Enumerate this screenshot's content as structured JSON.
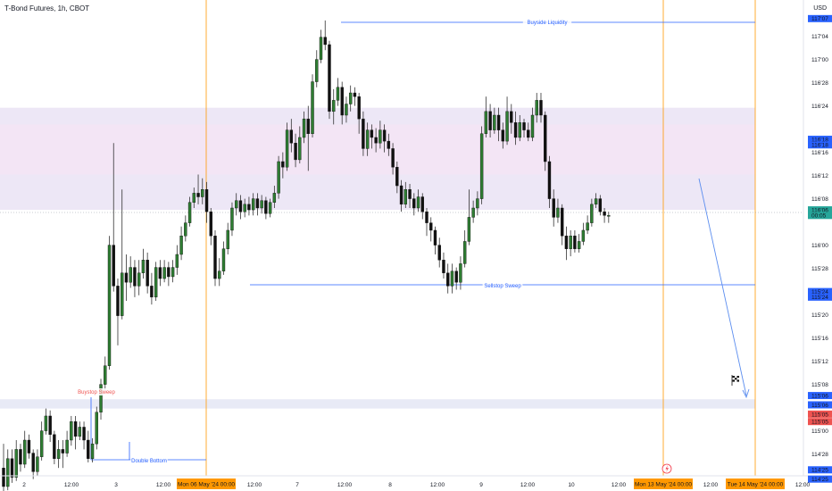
{
  "header": {
    "title": "T-Bond Futures, 1h, CBOT",
    "currency": "USD"
  },
  "chart_data": {
    "type": "candlestick",
    "ylim": [
      114.6,
      117.35
    ],
    "y_ticks": [
      {
        "label": "117'04",
        "value": 117.125
      },
      {
        "label": "117'00",
        "value": 117.0
      },
      {
        "label": "116'28",
        "value": 116.875
      },
      {
        "label": "116'24",
        "value": 116.75
      },
      {
        "label": "116'16",
        "value": 116.5
      },
      {
        "label": "116'12",
        "value": 116.375
      },
      {
        "label": "116'08",
        "value": 116.25
      },
      {
        "label": "116'00",
        "value": 116.0
      },
      {
        "label": "115'28",
        "value": 115.875
      },
      {
        "label": "115'20",
        "value": 115.625
      },
      {
        "label": "115'16",
        "value": 115.5
      },
      {
        "label": "115'12",
        "value": 115.375
      },
      {
        "label": "115'08",
        "value": 115.25
      },
      {
        "label": "115'00",
        "value": 115.0
      },
      {
        "label": "114'28",
        "value": 114.875
      }
    ],
    "x_ticks": [
      "2",
      "12:00",
      "3",
      "12:00",
      "12:00",
      "7",
      "12:00",
      "8",
      "12:00",
      "9",
      "12:00",
      "10",
      "12:00",
      "12:00",
      "12:00"
    ],
    "x_highlight_labels": [
      "Mon 06 May '24  00:00",
      "Mon 13 May '24  00:00",
      "Tue 14 May '24  00:00"
    ],
    "price_tags": [
      {
        "label": "117'07",
        "value": 117.22,
        "color": "#2962ff"
      },
      {
        "label": "116'18",
        "value": 116.57,
        "color": "#2962ff"
      },
      {
        "label": "116'18",
        "value": 116.54,
        "color": "#2962ff"
      },
      {
        "label": "116'06",
        "value": 116.19,
        "color": "#26a69a"
      },
      {
        "label": "00:05",
        "value": 116.16,
        "color": "#26a69a"
      },
      {
        "label": "115'24",
        "value": 115.75,
        "color": "#2962ff"
      },
      {
        "label": "115'24",
        "value": 115.72,
        "color": "#2962ff"
      },
      {
        "label": "115'06",
        "value": 115.19,
        "color": "#2962ff"
      },
      {
        "label": "115'06",
        "value": 115.14,
        "color": "#2962ff"
      },
      {
        "label": "115'05",
        "value": 115.09,
        "color": "#ef5350"
      },
      {
        "label": "115'05",
        "value": 115.05,
        "color": "#ef5350"
      },
      {
        "label": "114'25",
        "value": 114.79,
        "color": "#2962ff"
      },
      {
        "label": "114'25",
        "value": 114.74,
        "color": "#2962ff"
      }
    ],
    "zones": [
      {
        "from": 116.19,
        "to": 116.74,
        "color": "#ede7f6"
      },
      {
        "from": 116.38,
        "to": 116.65,
        "color": "#f3e5f5"
      },
      {
        "from": 115.12,
        "to": 115.17,
        "color": "#e8eaf6"
      }
    ],
    "annotations": [
      {
        "label": "Buyside Liquidity",
        "value": 117.23
      },
      {
        "label": "Sellstop Sweep",
        "value": 115.73
      },
      {
        "label": "Buystop Sweep",
        "value": 115.14
      },
      {
        "label": "Double Bottom",
        "value": 114.79
      }
    ],
    "candles": [
      [
        114.8,
        114.7,
        114.93,
        114.66
      ],
      [
        114.7,
        114.85,
        114.9,
        114.68
      ],
      [
        114.85,
        114.75,
        114.9,
        114.72
      ],
      [
        114.75,
        114.9,
        114.95,
        114.73
      ],
      [
        114.9,
        114.82,
        114.93,
        114.78
      ],
      [
        114.82,
        114.95,
        115.0,
        114.8
      ],
      [
        114.95,
        114.88,
        114.98,
        114.85
      ],
      [
        114.88,
        114.78,
        114.9,
        114.74
      ],
      [
        114.78,
        114.86,
        114.9,
        114.76
      ],
      [
        114.86,
        115.0,
        115.05,
        114.84
      ],
      [
        115.0,
        115.08,
        115.12,
        114.98
      ],
      [
        115.08,
        114.98,
        115.11,
        114.94
      ],
      [
        114.98,
        114.85,
        115.0,
        114.82
      ],
      [
        114.85,
        114.9,
        114.95,
        114.8
      ],
      [
        114.9,
        114.88,
        114.95,
        114.8
      ],
      [
        114.88,
        114.95,
        115.0,
        114.86
      ],
      [
        114.95,
        115.05,
        115.08,
        114.92
      ],
      [
        115.05,
        114.97,
        115.08,
        114.9
      ],
      [
        114.97,
        115.02,
        115.05,
        114.95
      ],
      [
        115.02,
        114.95,
        115.05,
        114.9
      ],
      [
        114.95,
        114.85,
        115.0,
        114.83
      ],
      [
        114.85,
        114.93,
        114.96,
        114.83
      ],
      [
        114.93,
        115.1,
        115.13,
        114.9
      ],
      [
        115.1,
        115.25,
        115.28,
        115.06
      ],
      [
        115.25,
        115.35,
        115.4,
        115.22
      ],
      [
        115.35,
        116.0,
        116.05,
        115.33
      ],
      [
        116.0,
        115.78,
        116.55,
        115.75
      ],
      [
        115.78,
        115.62,
        115.82,
        115.46
      ],
      [
        115.62,
        115.85,
        116.3,
        115.6
      ],
      [
        115.85,
        115.8,
        115.95,
        115.7
      ],
      [
        115.8,
        115.88,
        115.94,
        115.77
      ],
      [
        115.88,
        115.78,
        115.92,
        115.72
      ],
      [
        115.78,
        115.85,
        115.92,
        115.73
      ],
      [
        115.85,
        115.92,
        115.98,
        115.82
      ],
      [
        115.92,
        115.78,
        115.96,
        115.74
      ],
      [
        115.78,
        115.72,
        115.85,
        115.68
      ],
      [
        115.72,
        115.88,
        115.91,
        115.7
      ],
      [
        115.88,
        115.82,
        115.92,
        115.78
      ],
      [
        115.82,
        115.88,
        115.92,
        115.8
      ],
      [
        115.88,
        115.83,
        115.91,
        115.78
      ],
      [
        115.83,
        115.88,
        115.92,
        115.8
      ],
      [
        115.88,
        115.95,
        116.0,
        115.84
      ],
      [
        115.95,
        116.05,
        116.1,
        115.92
      ],
      [
        116.05,
        116.12,
        116.16,
        116.02
      ],
      [
        116.12,
        116.23,
        116.26,
        116.1
      ],
      [
        116.23,
        116.28,
        116.31,
        116.2
      ],
      [
        116.28,
        116.26,
        116.38,
        116.22
      ],
      [
        116.26,
        116.3,
        116.36,
        116.22
      ],
      [
        116.3,
        116.18,
        116.34,
        116.12
      ],
      [
        116.18,
        116.05,
        116.2,
        116.0
      ],
      [
        116.05,
        115.82,
        116.08,
        115.78
      ],
      [
        115.82,
        115.86,
        115.93,
        115.78
      ],
      [
        115.86,
        115.98,
        116.02,
        115.84
      ],
      [
        115.98,
        116.08,
        116.12,
        115.95
      ],
      [
        116.08,
        116.2,
        116.23,
        116.05
      ],
      [
        116.2,
        116.24,
        116.28,
        116.16
      ],
      [
        116.24,
        116.18,
        116.27,
        116.14
      ],
      [
        116.18,
        116.22,
        116.25,
        116.15
      ],
      [
        116.22,
        116.19,
        116.26,
        116.16
      ],
      [
        116.19,
        116.25,
        116.28,
        116.16
      ],
      [
        116.25,
        116.2,
        116.28,
        116.16
      ],
      [
        116.2,
        116.24,
        116.27,
        116.17
      ],
      [
        116.24,
        116.17,
        116.26,
        116.14
      ],
      [
        116.17,
        116.23,
        116.25,
        116.15
      ],
      [
        116.23,
        116.28,
        116.32,
        116.2
      ],
      [
        116.28,
        116.45,
        116.48,
        116.25
      ],
      [
        116.45,
        116.42,
        116.5,
        116.36
      ],
      [
        116.42,
        116.62,
        116.66,
        116.4
      ],
      [
        116.62,
        116.55,
        116.68,
        116.5
      ],
      [
        116.55,
        116.46,
        116.6,
        116.42
      ],
      [
        116.46,
        116.58,
        116.64,
        116.44
      ],
      [
        116.58,
        116.68,
        116.72,
        116.55
      ],
      [
        116.68,
        116.6,
        116.75,
        116.4
      ],
      [
        116.6,
        116.88,
        116.92,
        116.58
      ],
      [
        116.88,
        117.0,
        117.05,
        116.85
      ],
      [
        117.0,
        117.12,
        117.16,
        116.98
      ],
      [
        117.12,
        117.08,
        117.21,
        117.05
      ],
      [
        117.08,
        116.72,
        117.1,
        116.68
      ],
      [
        116.72,
        116.78,
        116.84,
        116.65
      ],
      [
        116.78,
        116.85,
        116.9,
        116.75
      ],
      [
        116.85,
        116.7,
        116.88,
        116.65
      ],
      [
        116.7,
        116.76,
        116.8,
        116.66
      ],
      [
        116.76,
        116.82,
        116.86,
        116.72
      ],
      [
        116.82,
        116.8,
        116.85,
        116.75
      ],
      [
        116.8,
        116.68,
        116.82,
        116.6
      ],
      [
        116.68,
        116.52,
        116.72,
        116.48
      ],
      [
        116.52,
        116.62,
        116.66,
        116.48
      ],
      [
        116.62,
        116.58,
        116.65,
        116.52
      ],
      [
        116.58,
        116.55,
        116.63,
        116.5
      ],
      [
        116.55,
        116.62,
        116.67,
        116.52
      ],
      [
        116.62,
        116.56,
        116.65,
        116.5
      ],
      [
        116.56,
        116.52,
        116.6,
        116.48
      ],
      [
        116.52,
        116.42,
        116.55,
        116.38
      ],
      [
        116.42,
        116.32,
        116.45,
        116.28
      ],
      [
        116.32,
        116.22,
        116.35,
        116.18
      ],
      [
        116.22,
        116.3,
        116.34,
        116.2
      ],
      [
        116.3,
        116.25,
        116.33,
        116.2
      ],
      [
        116.25,
        116.2,
        116.28,
        116.16
      ],
      [
        116.2,
        116.26,
        116.3,
        116.18
      ],
      [
        116.26,
        116.18,
        116.28,
        116.14
      ],
      [
        116.18,
        116.12,
        116.2,
        116.05
      ],
      [
        116.12,
        116.08,
        116.15,
        116.02
      ],
      [
        116.08,
        116.0,
        116.1,
        115.95
      ],
      [
        116.0,
        115.92,
        116.04,
        115.88
      ],
      [
        115.92,
        115.85,
        115.96,
        115.82
      ],
      [
        115.85,
        115.78,
        115.9,
        115.74
      ],
      [
        115.78,
        115.86,
        115.9,
        115.74
      ],
      [
        115.86,
        115.8,
        115.88,
        115.76
      ],
      [
        115.8,
        115.9,
        115.94,
        115.76
      ],
      [
        115.9,
        116.02,
        116.08,
        115.88
      ],
      [
        116.02,
        116.15,
        116.3,
        116.0
      ],
      [
        116.15,
        116.2,
        116.24,
        116.12
      ],
      [
        116.2,
        116.25,
        116.29,
        116.16
      ],
      [
        116.25,
        116.6,
        116.64,
        116.22
      ],
      [
        116.6,
        116.72,
        116.8,
        116.58
      ],
      [
        116.72,
        116.62,
        116.76,
        116.58
      ],
      [
        116.62,
        116.7,
        116.74,
        116.6
      ],
      [
        116.7,
        116.62,
        116.74,
        116.56
      ],
      [
        116.62,
        116.56,
        116.66,
        116.52
      ],
      [
        116.56,
        116.72,
        116.8,
        116.54
      ],
      [
        116.72,
        116.66,
        116.76,
        116.6
      ],
      [
        116.66,
        116.58,
        116.72,
        116.54
      ],
      [
        116.58,
        116.66,
        116.7,
        116.56
      ],
      [
        116.66,
        116.62,
        116.68,
        116.58
      ],
      [
        116.62,
        116.58,
        116.66,
        116.56
      ],
      [
        116.58,
        116.7,
        116.74,
        116.56
      ],
      [
        116.7,
        116.78,
        116.82,
        116.66
      ],
      [
        116.78,
        116.7,
        116.82,
        116.66
      ],
      [
        116.7,
        116.45,
        116.72,
        116.4
      ],
      [
        116.45,
        116.25,
        116.48,
        116.2
      ],
      [
        116.25,
        116.15,
        116.3,
        116.1
      ],
      [
        116.15,
        116.2,
        116.25,
        116.12
      ],
      [
        116.2,
        116.05,
        116.22,
        116.0
      ],
      [
        116.05,
        115.98,
        116.1,
        115.92
      ],
      [
        115.98,
        116.05,
        116.08,
        115.94
      ],
      [
        116.05,
        115.98,
        116.08,
        115.96
      ],
      [
        115.98,
        116.02,
        116.06,
        115.96
      ],
      [
        116.02,
        116.08,
        116.12,
        116.0
      ],
      [
        116.08,
        116.12,
        116.16,
        116.06
      ],
      [
        116.12,
        116.22,
        116.25,
        116.1
      ],
      [
        116.22,
        116.25,
        116.28,
        116.2
      ],
      [
        116.25,
        116.18,
        116.27,
        116.16
      ],
      [
        116.18,
        116.16,
        116.2,
        116.12
      ],
      [
        116.16,
        116.16,
        116.18,
        116.12
      ]
    ]
  }
}
